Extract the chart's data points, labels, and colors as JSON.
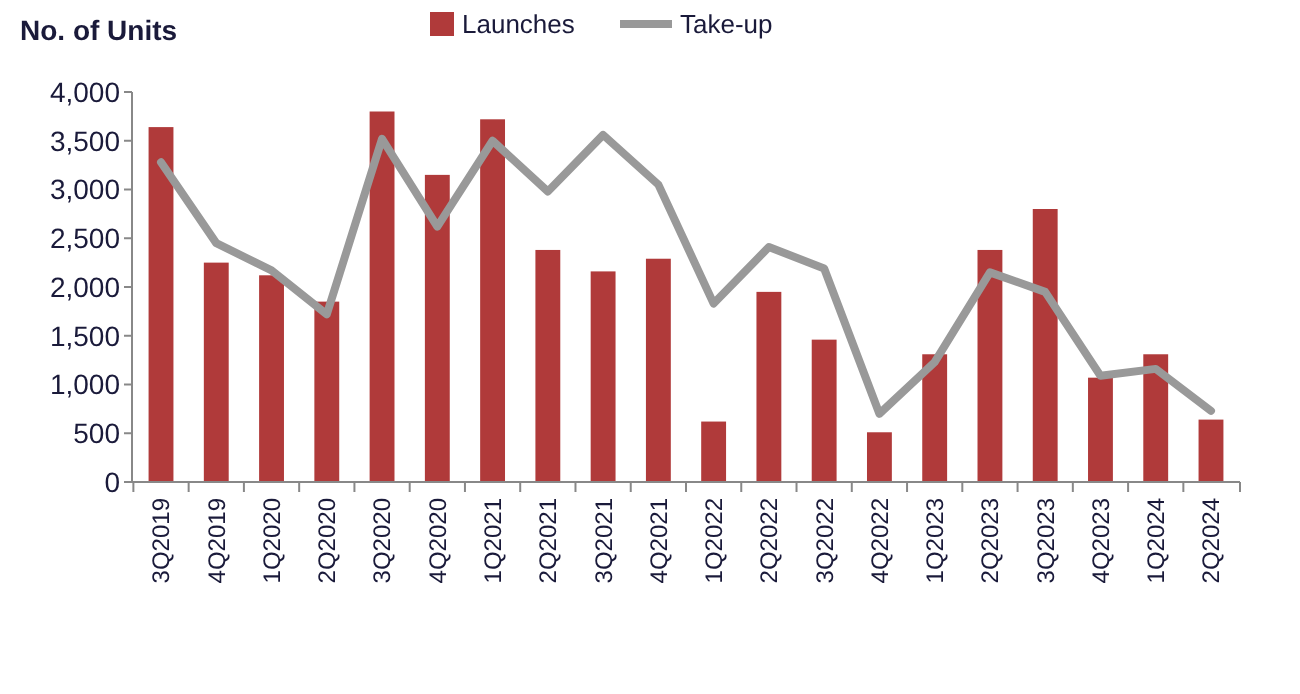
{
  "chart_data": {
    "type": "bar",
    "title": "No. of Units",
    "categories": [
      "3Q2019",
      "4Q2019",
      "1Q2020",
      "2Q2020",
      "3Q2020",
      "4Q2020",
      "1Q2021",
      "2Q2021",
      "3Q2021",
      "4Q2021",
      "1Q2022",
      "2Q2022",
      "3Q2022",
      "4Q2022",
      "1Q2023",
      "2Q2023",
      "3Q2023",
      "4Q2023",
      "1Q2024",
      "2Q2024"
    ],
    "series": [
      {
        "name": "Launches",
        "color": "#b03a3a",
        "values": [
          3640,
          2250,
          2120,
          1850,
          3800,
          3150,
          3720,
          2380,
          2160,
          2290,
          620,
          1950,
          1460,
          510,
          1310,
          2380,
          2800,
          1070,
          1310,
          640
        ]
      },
      {
        "name": "Take-up",
        "type": "line",
        "color": "#999999",
        "values": [
          3280,
          2450,
          2170,
          1720,
          3520,
          2620,
          3500,
          2980,
          3560,
          3050,
          1830,
          2410,
          2190,
          700,
          1230,
          2150,
          1950,
          1090,
          1160,
          730
        ]
      }
    ],
    "ylim": [
      0,
      4000
    ],
    "yticks": [
      {
        "value": 0,
        "label": "0"
      },
      {
        "value": 500,
        "label": "500"
      },
      {
        "value": 1000,
        "label": "1,000"
      },
      {
        "value": 1500,
        "label": "1,500"
      },
      {
        "value": 2000,
        "label": "2,000"
      },
      {
        "value": 2500,
        "label": "2,500"
      },
      {
        "value": 3000,
        "label": "3,000"
      },
      {
        "value": 3500,
        "label": "3,500"
      },
      {
        "value": 4000,
        "label": "4,000"
      }
    ],
    "legend": "top",
    "grid": false,
    "marker": "none"
  }
}
